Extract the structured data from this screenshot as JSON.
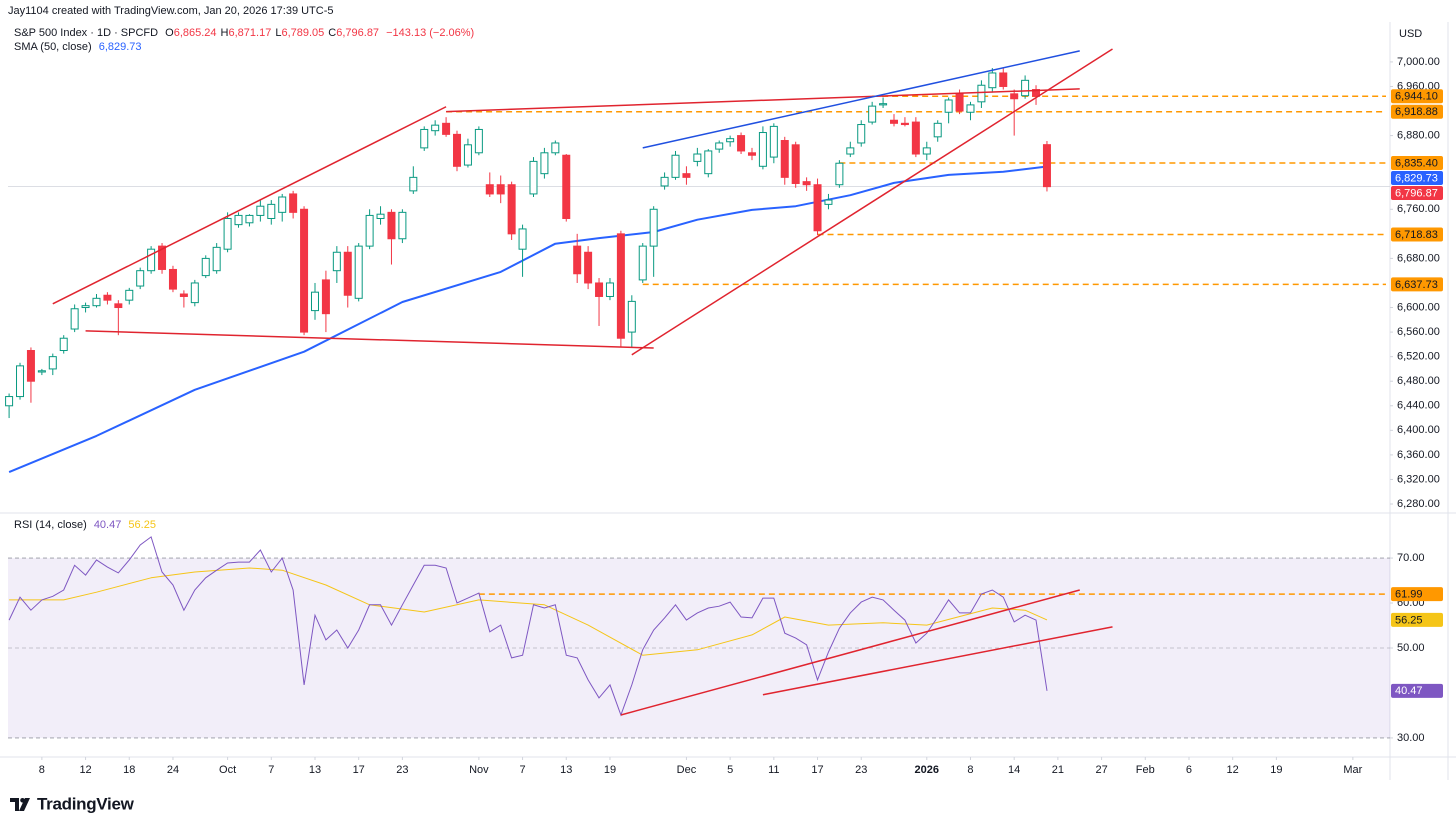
{
  "chart_data": {
    "type": "candlestick",
    "header": {
      "credit": "Jay1104 created with TradingView.com, Jan 20, 2026 17:39 UTC-5",
      "title": "S&P 500 Index · 1D · SPCFD",
      "ohlc": [
        {
          "key": "O",
          "value": "6,865.24"
        },
        {
          "key": "H",
          "value": "6,871.17"
        },
        {
          "key": "L",
          "value": "6,789.05"
        },
        {
          "key": "C",
          "value": "6,796.87"
        }
      ],
      "change": "−143.13 (−2.06%)",
      "currency": "USD"
    },
    "footer": {
      "brand": "TradingView"
    },
    "xlim": [
      -0.1,
      126.4
    ],
    "xticks": [
      {
        "value": 3,
        "label": "8"
      },
      {
        "value": 7,
        "label": "12"
      },
      {
        "value": 11,
        "label": "18"
      },
      {
        "value": 15,
        "label": "24"
      },
      {
        "value": 20,
        "label": "Oct"
      },
      {
        "value": 24,
        "label": "7"
      },
      {
        "value": 28,
        "label": "13"
      },
      {
        "value": 32,
        "label": "17"
      },
      {
        "value": 36,
        "label": "23"
      },
      {
        "value": 43,
        "label": "Nov"
      },
      {
        "value": 47,
        "label": "7"
      },
      {
        "value": 51,
        "label": "13"
      },
      {
        "value": 55,
        "label": "19"
      },
      {
        "value": 62,
        "label": "Dec"
      },
      {
        "value": 66,
        "label": "5"
      },
      {
        "value": 70,
        "label": "11"
      },
      {
        "value": 74,
        "label": "17"
      },
      {
        "value": 78,
        "label": "23"
      },
      {
        "value": 84,
        "label": "2026",
        "bold": true
      },
      {
        "value": 88,
        "label": "8"
      },
      {
        "value": 92,
        "label": "14"
      },
      {
        "value": 96,
        "label": "21"
      },
      {
        "value": 100,
        "label": "27"
      },
      {
        "value": 104,
        "label": "Feb"
      },
      {
        "value": 108,
        "label": "6"
      },
      {
        "value": 112,
        "label": "12"
      },
      {
        "value": 116,
        "label": "19"
      },
      {
        "value": 123,
        "label": "Mar"
      }
    ],
    "price": {
      "ylim": [
        6267,
        7065
      ],
      "yticks": [
        {
          "value": 7000,
          "label": "7,000.00"
        },
        {
          "value": 6960,
          "label": "6,960.00"
        },
        {
          "value": 6880,
          "label": "6,880.00"
        },
        {
          "value": 6760,
          "label": "6,760.00"
        },
        {
          "value": 6680,
          "label": "6,680.00"
        },
        {
          "value": 6600,
          "label": "6,600.00"
        },
        {
          "value": 6560,
          "label": "6,560.00"
        },
        {
          "value": 6520,
          "label": "6,520.00"
        },
        {
          "value": 6480,
          "label": "6,480.00"
        },
        {
          "value": 6440,
          "label": "6,440.00"
        },
        {
          "value": 6400,
          "label": "6,400.00"
        },
        {
          "value": 6360,
          "label": "6,360.00"
        },
        {
          "value": 6320,
          "label": "6,320.00"
        },
        {
          "value": 6280,
          "label": "6,280.00"
        }
      ],
      "up_color": "#089981",
      "down_color": "#f23645",
      "candles": [
        [
          6440,
          6460,
          6420,
          6455
        ],
        [
          6455,
          6510,
          6450,
          6505
        ],
        [
          6530,
          6535,
          6445,
          6480
        ],
        [
          6495,
          6500,
          6490,
          6497
        ],
        [
          6500,
          6525,
          6490,
          6520
        ],
        [
          6530,
          6555,
          6525,
          6550
        ],
        [
          6565,
          6605,
          6560,
          6598
        ],
        [
          6600,
          6608,
          6592,
          6603
        ],
        [
          6603,
          6622,
          6600,
          6615
        ],
        [
          6620,
          6625,
          6605,
          6612
        ],
        [
          6606,
          6612,
          6555,
          6600
        ],
        [
          6612,
          6632,
          6605,
          6628
        ],
        [
          6635,
          6665,
          6630,
          6660
        ],
        [
          6660,
          6700,
          6655,
          6695
        ],
        [
          6700,
          6705,
          6655,
          6662
        ],
        [
          6662,
          6668,
          6625,
          6630
        ],
        [
          6622,
          6628,
          6600,
          6618
        ],
        [
          6608,
          6645,
          6602,
          6640
        ],
        [
          6652,
          6685,
          6648,
          6680
        ],
        [
          6660,
          6705,
          6655,
          6698
        ],
        [
          6695,
          6755,
          6690,
          6745
        ],
        [
          6735,
          6755,
          6730,
          6750
        ],
        [
          6738,
          6752,
          6732,
          6750
        ],
        [
          6750,
          6775,
          6740,
          6765
        ],
        [
          6745,
          6775,
          6735,
          6768
        ],
        [
          6755,
          6785,
          6740,
          6780
        ],
        [
          6785,
          6790,
          6745,
          6755
        ],
        [
          6760,
          6765,
          6555,
          6560
        ],
        [
          6595,
          6640,
          6580,
          6625
        ],
        [
          6645,
          6660,
          6560,
          6590
        ],
        [
          6660,
          6700,
          6640,
          6690
        ],
        [
          6690,
          6700,
          6600,
          6620
        ],
        [
          6615,
          6705,
          6610,
          6700
        ],
        [
          6700,
          6760,
          6695,
          6750
        ],
        [
          6745,
          6765,
          6735,
          6752
        ],
        [
          6755,
          6760,
          6670,
          6712
        ],
        [
          6712,
          6760,
          6705,
          6755
        ],
        [
          6790,
          6830,
          6785,
          6812
        ],
        [
          6860,
          6895,
          6855,
          6890
        ],
        [
          6888,
          6905,
          6880,
          6897
        ],
        [
          6900,
          6910,
          6878,
          6882
        ],
        [
          6882,
          6888,
          6822,
          6830
        ],
        [
          6832,
          6875,
          6828,
          6865
        ],
        [
          6852,
          6895,
          6848,
          6890
        ],
        [
          6800,
          6820,
          6780,
          6785
        ],
        [
          6800,
          6815,
          6770,
          6785
        ],
        [
          6800,
          6805,
          6710,
          6720
        ],
        [
          6695,
          6735,
          6650,
          6728
        ],
        [
          6785,
          6845,
          6780,
          6838
        ],
        [
          6818,
          6860,
          6810,
          6852
        ],
        [
          6852,
          6872,
          6848,
          6868
        ],
        [
          6848,
          6850,
          6740,
          6745
        ],
        [
          6700,
          6720,
          6640,
          6655
        ],
        [
          6690,
          6700,
          6630,
          6640
        ],
        [
          6640,
          6648,
          6570,
          6618
        ],
        [
          6618,
          6648,
          6612,
          6640
        ],
        [
          6720,
          6725,
          6535,
          6550
        ],
        [
          6560,
          6620,
          6535,
          6610
        ],
        [
          6645,
          6705,
          6640,
          6700
        ],
        [
          6700,
          6765,
          6650,
          6760
        ],
        [
          6798,
          6820,
          6792,
          6812
        ],
        [
          6812,
          6855,
          6808,
          6848
        ],
        [
          6818,
          6830,
          6800,
          6812
        ],
        [
          6838,
          6860,
          6830,
          6850
        ],
        [
          6818,
          6858,
          6812,
          6855
        ],
        [
          6858,
          6872,
          6852,
          6868
        ],
        [
          6870,
          6880,
          6862,
          6875
        ],
        [
          6880,
          6885,
          6850,
          6855
        ],
        [
          6852,
          6860,
          6840,
          6848
        ],
        [
          6830,
          6895,
          6825,
          6885
        ],
        [
          6845,
          6900,
          6835,
          6895
        ],
        [
          6872,
          6878,
          6800,
          6812
        ],
        [
          6865,
          6870,
          6795,
          6802
        ],
        [
          6805,
          6812,
          6790,
          6800
        ],
        [
          6800,
          6810,
          6718,
          6725
        ],
        [
          6768,
          6785,
          6760,
          6775
        ],
        [
          6800,
          6840,
          6795,
          6835
        ],
        [
          6850,
          6870,
          6845,
          6860
        ],
        [
          6868,
          6905,
          6862,
          6898
        ],
        [
          6902,
          6935,
          6898,
          6928
        ],
        [
          6930,
          6942,
          6925,
          6932
        ],
        [
          6905,
          6915,
          6895,
          6900
        ],
        [
          6900,
          6910,
          6895,
          6898
        ],
        [
          6902,
          6910,
          6845,
          6850
        ],
        [
          6850,
          6870,
          6840,
          6860
        ],
        [
          6878,
          6905,
          6870,
          6900
        ],
        [
          6918,
          6942,
          6900,
          6938
        ],
        [
          6948,
          6955,
          6915,
          6920
        ],
        [
          6918,
          6935,
          6905,
          6930
        ],
        [
          6935,
          6970,
          6925,
          6962
        ],
        [
          6958,
          6990,
          6950,
          6982
        ],
        [
          6982,
          6990,
          6955,
          6960
        ],
        [
          6948,
          6955,
          6880,
          6940
        ],
        [
          6945,
          6978,
          6940,
          6970
        ],
        [
          6955,
          6962,
          6930,
          6944
        ],
        [
          6865.24,
          6871.17,
          6789.05,
          6796.87
        ]
      ],
      "last": {
        "value": 6796.87,
        "label": "6,796.87"
      },
      "sma": {
        "name": "SMA (50, close)",
        "label": "6,829.73",
        "color": "#2962ff",
        "x": [
          0,
          8,
          17,
          27,
          36,
          45,
          50,
          54,
          59,
          63,
          68,
          72,
          77,
          81,
          86,
          91,
          95
        ],
        "values": [
          6332,
          6391,
          6466,
          6528,
          6609,
          6658,
          6704,
          6713,
          6723,
          6743,
          6759,
          6765,
          6783,
          6803,
          6816,
          6821,
          6829.73
        ]
      },
      "levels_color": "#ff9800",
      "levels": [
        {
          "value": 6944.1,
          "label": "6,944.10",
          "from": 79
        },
        {
          "value": 6918.88,
          "label": "6,918.88",
          "from": 40
        },
        {
          "value": 6835.4,
          "label": "6,835.40",
          "from": 76
        },
        {
          "value": 6718.83,
          "label": "6,718.83",
          "from": 74
        },
        {
          "value": 6637.73,
          "label": "6,637.73",
          "from": 58
        }
      ],
      "trendlines": [
        {
          "color": "#e0242f",
          "points": [
            [
              4,
              6606
            ],
            [
              40,
              6927
            ]
          ]
        },
        {
          "color": "#e0242f",
          "points": [
            [
              7,
              6562
            ],
            [
              59,
              6534
            ]
          ]
        },
        {
          "color": "#e0242f",
          "points": [
            [
              40,
              6919
            ],
            [
              98,
              6956
            ]
          ]
        },
        {
          "color": "#e0242f",
          "points": [
            [
              57,
              6523
            ],
            [
              101,
              7021
            ]
          ]
        },
        {
          "color": "#2050e0",
          "points": [
            [
              58,
              6860
            ],
            [
              98,
              7018
            ]
          ]
        }
      ]
    },
    "rsi": {
      "name": "RSI (14, close)",
      "label": "40.47",
      "color": "#7e57c2",
      "ylim": [
        26.2,
        79.8
      ],
      "yticks": [
        {
          "value": 70,
          "label": "70.00"
        },
        {
          "value": 60,
          "label": "60.00"
        },
        {
          "value": 50,
          "label": "50.00"
        },
        {
          "value": 30,
          "label": "30.00"
        }
      ],
      "band": [
        30,
        70
      ],
      "midline": 50,
      "values": [
        56.2,
        61.3,
        58.4,
        60.7,
        61.5,
        62.9,
        68.4,
        66.2,
        69.6,
        68,
        66.7,
        69.6,
        72.9,
        74.7,
        66.9,
        64,
        58.4,
        62.9,
        65.6,
        67.3,
        68.9,
        69.1,
        69.1,
        71.8,
        66.9,
        70,
        62.9,
        41.8,
        57.3,
        51.8,
        54,
        50,
        54,
        59.6,
        59.6,
        55.1,
        59.6,
        64,
        68.4,
        68.4,
        67.8,
        60,
        61.1,
        62.2,
        53.6,
        55.1,
        47.8,
        48.4,
        59.6,
        58.9,
        59.6,
        48.4,
        47.8,
        42.9,
        38.9,
        41.8,
        35.1,
        41.8,
        49.6,
        54,
        56.7,
        59.6,
        56.2,
        57.8,
        58.9,
        59.3,
        60.2,
        56.9,
        56.7,
        61.1,
        61.1,
        53.3,
        52.2,
        50.7,
        42.9,
        49.1,
        54.4,
        57.8,
        60.2,
        61.3,
        60.7,
        58.4,
        56.2,
        51.1,
        53.3,
        56.9,
        60.7,
        57.8,
        57.8,
        62,
        62.9,
        61.3,
        55.8,
        57.3,
        56.2,
        40.47
      ],
      "sma": {
        "label": "56.25",
        "color": "#f5c518",
        "x": [
          0,
          5,
          8,
          13,
          17,
          22,
          25,
          29,
          33,
          38,
          43,
          49,
          53,
          58,
          63,
          68,
          71,
          75,
          80,
          84,
          90,
          93,
          95
        ],
        "values": [
          60.7,
          60.7,
          62.4,
          65.6,
          66.9,
          67.8,
          67.3,
          64,
          59.6,
          58,
          60.7,
          59.6,
          55.1,
          48.4,
          49.6,
          52.9,
          56.9,
          55.1,
          55.6,
          55.1,
          58.9,
          58.4,
          56.25
        ]
      },
      "level": {
        "value": 61.99,
        "label": "61.99",
        "from": 43
      },
      "trendlines": [
        {
          "color": "#e0242f",
          "points": [
            [
              56,
              35.1
            ],
            [
              98,
              62.9
            ]
          ]
        },
        {
          "color": "#e0242f",
          "points": [
            [
              69,
              39.6
            ],
            [
              101,
              54.7
            ]
          ]
        }
      ]
    }
  }
}
